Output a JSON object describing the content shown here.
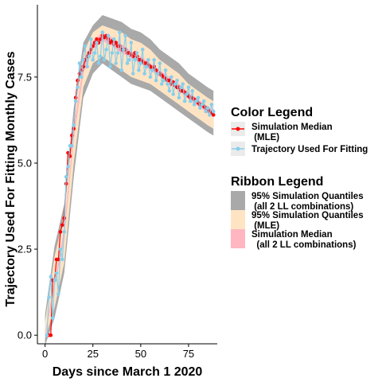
{
  "chart_data": {
    "type": "line",
    "xlabel": "Days since March 1 2020",
    "ylabel": "Trajectory Used For Fitting Monthly Cases",
    "xlim": [
      -4,
      90
    ],
    "ylim": [
      -0.25,
      9.6
    ],
    "x_ticks": [
      0,
      25,
      50,
      75
    ],
    "y_ticks": [
      0.0,
      2.5,
      5.0,
      7.5
    ],
    "x_tick_labels": [
      "0",
      "25",
      "50",
      "75"
    ],
    "y_tick_labels": [
      "0.0",
      "2.5",
      "5.0",
      "7.5"
    ],
    "grid": false,
    "legend_position": "right",
    "series": [
      {
        "name": "Simulation Median (MLE)",
        "type": "line",
        "color": "#ff0000",
        "points": [
          [
            2,
            0
          ],
          [
            3,
            0
          ],
          [
            4,
            1.6
          ],
          [
            5,
            1.6
          ],
          [
            6,
            2.2
          ],
          [
            7,
            2.2
          ],
          [
            8,
            3.0
          ],
          [
            9,
            3.2
          ],
          [
            10,
            3.4
          ],
          [
            11,
            4.4
          ],
          [
            12,
            5.3
          ],
          [
            13,
            5.2
          ],
          [
            14,
            5.8
          ],
          [
            15,
            6.0
          ],
          [
            16,
            6.9
          ],
          [
            17,
            7.4
          ],
          [
            18,
            7.6
          ],
          [
            19,
            7.7
          ],
          [
            20,
            7.8
          ],
          [
            21,
            8.0
          ],
          [
            22,
            8.1
          ],
          [
            23,
            8.2
          ],
          [
            24,
            8.3
          ],
          [
            25,
            8.4
          ],
          [
            26,
            8.5
          ],
          [
            27,
            8.6
          ],
          [
            28,
            8.5
          ],
          [
            29,
            8.6
          ],
          [
            30,
            8.7
          ],
          [
            31,
            8.65
          ],
          [
            32,
            8.7
          ],
          [
            33,
            8.6
          ],
          [
            34,
            8.5
          ],
          [
            35,
            8.55
          ],
          [
            36,
            8.45
          ],
          [
            37,
            8.5
          ],
          [
            38,
            8.4
          ],
          [
            39,
            8.4
          ],
          [
            40,
            8.3
          ],
          [
            41,
            8.3
          ],
          [
            42,
            8.3
          ],
          [
            43,
            8.2
          ],
          [
            44,
            8.2
          ],
          [
            45,
            8.15
          ],
          [
            46,
            8.1
          ],
          [
            47,
            8.2
          ],
          [
            48,
            8.1
          ],
          [
            49,
            8.0
          ],
          [
            50,
            8.0
          ],
          [
            51,
            7.95
          ],
          [
            52,
            7.9
          ],
          [
            53,
            7.9
          ],
          [
            54,
            7.85
          ],
          [
            55,
            7.8
          ],
          [
            56,
            7.75
          ],
          [
            57,
            7.8
          ],
          [
            58,
            7.7
          ],
          [
            59,
            7.6
          ],
          [
            60,
            7.6
          ],
          [
            61,
            7.55
          ],
          [
            62,
            7.5
          ],
          [
            63,
            7.45
          ],
          [
            64,
            7.4
          ],
          [
            65,
            7.4
          ],
          [
            66,
            7.3
          ],
          [
            67,
            7.35
          ],
          [
            68,
            7.25
          ],
          [
            69,
            7.2
          ],
          [
            70,
            7.2
          ],
          [
            71,
            7.1
          ],
          [
            72,
            7.1
          ],
          [
            73,
            7.05
          ],
          [
            74,
            7.0
          ],
          [
            75,
            6.95
          ],
          [
            76,
            6.9
          ],
          [
            77,
            6.9
          ],
          [
            78,
            6.85
          ],
          [
            79,
            6.8
          ],
          [
            80,
            6.75
          ],
          [
            81,
            6.7
          ],
          [
            82,
            6.7
          ],
          [
            83,
            6.65
          ],
          [
            84,
            6.6
          ],
          [
            85,
            6.55
          ],
          [
            86,
            6.5
          ],
          [
            87,
            6.45
          ],
          [
            88,
            6.4
          ]
        ]
      },
      {
        "name": "Trajectory Used For Fitting",
        "type": "line",
        "color": "#87ceeb",
        "points": [
          [
            1,
            0
          ],
          [
            2,
            1.1
          ],
          [
            3,
            1.7
          ],
          [
            4,
            0.5
          ],
          [
            5,
            1.6
          ],
          [
            6,
            1.8
          ],
          [
            7,
            1.2
          ],
          [
            8,
            2.5
          ],
          [
            9,
            2.2
          ],
          [
            10,
            3.0
          ],
          [
            11,
            4.6
          ],
          [
            12,
            4.9
          ],
          [
            13,
            5.5
          ],
          [
            14,
            5.5
          ],
          [
            15,
            6.1
          ],
          [
            16,
            6.8
          ],
          [
            17,
            7.2
          ],
          [
            18,
            7.9
          ],
          [
            19,
            7.5
          ],
          [
            20,
            8.0
          ],
          [
            21,
            8.4
          ],
          [
            22,
            7.8
          ],
          [
            23,
            8.1
          ],
          [
            24,
            8.6
          ],
          [
            25,
            8.0
          ],
          [
            26,
            8.2
          ],
          [
            27,
            8.5
          ],
          [
            28,
            7.9
          ],
          [
            29,
            8.1
          ],
          [
            30,
            8.8
          ],
          [
            31,
            8.0
          ],
          [
            32,
            8.3
          ],
          [
            33,
            8.7
          ],
          [
            34,
            7.8
          ],
          [
            35,
            8.2
          ],
          [
            36,
            8.6
          ],
          [
            37,
            7.9
          ],
          [
            38,
            8.2
          ],
          [
            39,
            8.8
          ],
          [
            40,
            7.7
          ],
          [
            41,
            8.3
          ],
          [
            42,
            8.7
          ],
          [
            43,
            7.9
          ],
          [
            44,
            8.0
          ],
          [
            45,
            8.5
          ],
          [
            46,
            7.6
          ],
          [
            47,
            8.0
          ],
          [
            48,
            8.2
          ],
          [
            49,
            7.7
          ],
          [
            50,
            7.9
          ],
          [
            51,
            8.3
          ],
          [
            52,
            7.6
          ],
          [
            53,
            7.8
          ],
          [
            54,
            8.0
          ],
          [
            55,
            7.5
          ],
          [
            56,
            7.7
          ],
          [
            57,
            8.0
          ],
          [
            58,
            7.4
          ],
          [
            59,
            7.6
          ],
          [
            60,
            7.9
          ],
          [
            61,
            7.3
          ],
          [
            62,
            7.4
          ],
          [
            63,
            7.7
          ],
          [
            64,
            7.3
          ],
          [
            65,
            7.1
          ],
          [
            66,
            7.5
          ],
          [
            67,
            7.0
          ],
          [
            68,
            7.3
          ],
          [
            69,
            7.4
          ],
          [
            70,
            6.9
          ],
          [
            71,
            7.2
          ],
          [
            72,
            7.3
          ],
          [
            73,
            6.8
          ],
          [
            74,
            7.0
          ],
          [
            75,
            7.2
          ],
          [
            76,
            6.8
          ],
          [
            77,
            7.1
          ],
          [
            78,
            6.7
          ],
          [
            79,
            6.8
          ],
          [
            80,
            6.9
          ],
          [
            81,
            6.6
          ],
          [
            82,
            6.7
          ],
          [
            83,
            6.8
          ],
          [
            84,
            6.5
          ],
          [
            85,
            6.6
          ],
          [
            86,
            6.4
          ],
          [
            87,
            6.7
          ],
          [
            88,
            6.5
          ]
        ]
      }
    ],
    "ribbons": [
      {
        "name": "95% Simulation Quantiles (all 2 LL combinations)",
        "color": "#a9a9a9",
        "x": [
          0,
          5,
          10,
          15,
          20,
          25,
          30,
          35,
          40,
          45,
          50,
          55,
          60,
          65,
          70,
          75,
          80,
          85,
          88
        ],
        "lower": [
          -0.3,
          0.5,
          1.8,
          4.6,
          6.9,
          7.6,
          7.9,
          7.7,
          7.5,
          7.3,
          7.2,
          7.1,
          6.9,
          6.7,
          6.5,
          6.3,
          6.1,
          5.9,
          5.8
        ],
        "upper": [
          0.6,
          2.6,
          3.8,
          6.6,
          8.5,
          9.0,
          9.3,
          9.2,
          9.1,
          8.9,
          8.8,
          8.6,
          8.3,
          8.1,
          7.9,
          7.6,
          7.4,
          7.2,
          7.1
        ]
      },
      {
        "name": "95% Simulation Quantiles (MLE)",
        "color": "#ffe4c4",
        "x": [
          0,
          5,
          10,
          15,
          20,
          25,
          30,
          35,
          40,
          45,
          50,
          55,
          60,
          65,
          70,
          75,
          80,
          85,
          88
        ],
        "lower": [
          -0.1,
          0.8,
          2.1,
          5.0,
          7.2,
          7.9,
          8.1,
          7.9,
          7.7,
          7.5,
          7.4,
          7.3,
          7.1,
          6.9,
          6.7,
          6.5,
          6.3,
          6.1,
          6.0
        ],
        "upper": [
          0.4,
          2.3,
          3.5,
          6.3,
          8.2,
          8.8,
          9.0,
          8.9,
          8.8,
          8.6,
          8.5,
          8.3,
          8.0,
          7.8,
          7.6,
          7.3,
          7.1,
          6.9,
          6.8
        ]
      },
      {
        "name": "Simulation Median (all 2 LL combinations)",
        "color": "#ffb6c1",
        "x": [
          0,
          5,
          10,
          15,
          20,
          25,
          30,
          35,
          40,
          45,
          50,
          55,
          60,
          65,
          70,
          75,
          80,
          85,
          88
        ],
        "lower": [
          -0.05,
          1.4,
          2.8,
          5.7,
          7.6,
          8.3,
          8.55,
          8.4,
          8.2,
          8.05,
          7.9,
          7.7,
          7.5,
          7.3,
          7.1,
          6.85,
          6.65,
          6.45,
          6.35
        ],
        "upper": [
          0.05,
          1.6,
          3.1,
          6.0,
          7.9,
          8.55,
          8.8,
          8.65,
          8.45,
          8.25,
          8.1,
          7.9,
          7.7,
          7.5,
          7.3,
          7.05,
          6.85,
          6.65,
          6.55
        ]
      }
    ]
  },
  "legends": {
    "color": {
      "title": "Color  Legend",
      "items": [
        {
          "label_line1": "Simulation Median",
          "label_line2": " (MLE)",
          "color": "#ff0000"
        },
        {
          "label_line1": "Trajectory Used For Fitting",
          "label_line2": "",
          "color": "#87ceeb"
        }
      ]
    },
    "ribbon": {
      "title": "Ribbon  Legend",
      "items": [
        {
          "label_line1": "95% Simulation Quantiles",
          "label_line2": " (all 2 LL combinations)",
          "color": "#a9a9a9"
        },
        {
          "label_line1": "95% Simulation Quantiles",
          "label_line2": " (MLE)",
          "color": "#ffe4c4"
        },
        {
          "label_line1": "Simulation Median",
          "label_line2": "  (all 2 LL combinations)",
          "color": "#ffb6c1"
        }
      ]
    }
  }
}
